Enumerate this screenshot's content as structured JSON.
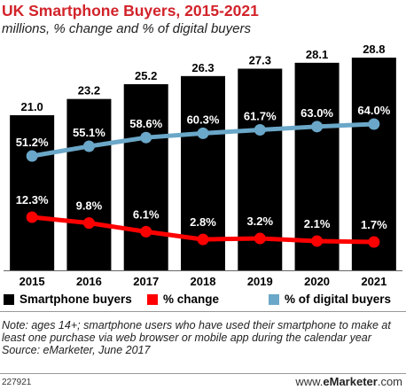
{
  "title": "UK Smartphone Buyers, 2015-2021",
  "subtitle": "millions, % change and % of digital buyers",
  "chart_data": {
    "type": "bar",
    "categories": [
      "2015",
      "2016",
      "2017",
      "2018",
      "2019",
      "2020",
      "2021"
    ],
    "series": [
      {
        "name": "Smartphone buyers",
        "type": "bar",
        "color": "#000000",
        "values": [
          21.0,
          23.2,
          25.2,
          26.3,
          27.3,
          28.1,
          28.8
        ],
        "labels": [
          "21.0",
          "23.2",
          "25.2",
          "26.3",
          "27.3",
          "28.1",
          "28.8"
        ]
      },
      {
        "name": "% change",
        "type": "line",
        "color": "#ff0000",
        "values": [
          12.3,
          9.8,
          6.1,
          2.8,
          3.2,
          2.1,
          1.7
        ],
        "labels": [
          "12.3%",
          "9.8%",
          "6.1%",
          "2.8%",
          "3.2%",
          "2.1%",
          "1.7%"
        ]
      },
      {
        "name": "% of digital buyers",
        "type": "line",
        "color": "#6aa7c8",
        "values": [
          51.2,
          55.1,
          58.6,
          60.3,
          61.7,
          63.0,
          64.0
        ],
        "labels": [
          "51.2%",
          "55.1%",
          "58.6%",
          "60.3%",
          "61.7%",
          "63.0%",
          "64.0%"
        ]
      }
    ],
    "legend_position": "bottom",
    "grid": false
  },
  "notes": {
    "note": "Note: ages 14+; smartphone users who have used their smartphone to make at least one purchase via web browser or mobile app during the calendar year",
    "source": "Source: eMarketer, June 2017"
  },
  "footer": {
    "id": "227921",
    "brand_prefix": "www.",
    "brand_name": "eMarketer",
    "brand_suffix": ".com"
  }
}
